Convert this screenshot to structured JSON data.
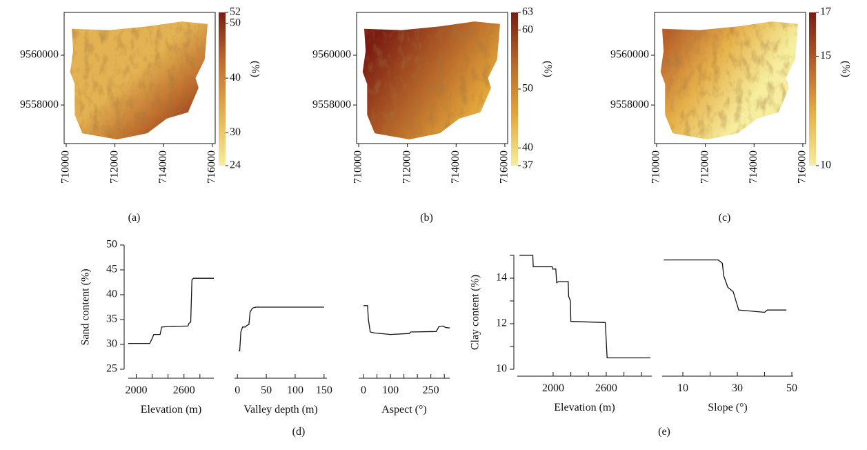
{
  "chart_data": [
    {
      "type": "map",
      "label": "(a)",
      "xlim": [
        709915,
        716115
      ],
      "xticks": [
        710000,
        712000,
        714000,
        716000
      ],
      "ylim": [
        9556450,
        9561720
      ],
      "yticks": [
        9558000,
        9560000
      ],
      "colorbar_lim": [
        24,
        52
      ],
      "colorbar_ticks": [
        24,
        30,
        40,
        50,
        52
      ],
      "colorbar_label": "(%)",
      "colormap": [
        "#f6ee9e",
        "#e3b252",
        "#c0702e",
        "#7a1c12"
      ]
    },
    {
      "type": "map",
      "label": "(b)",
      "xlim": [
        709915,
        716115
      ],
      "xticks": [
        710000,
        712000,
        714000,
        716000
      ],
      "ylim": [
        9556450,
        9561720
      ],
      "yticks": [
        9558000,
        9560000
      ],
      "colorbar_lim": [
        37,
        63
      ],
      "colorbar_ticks": [
        37,
        40,
        50,
        60,
        63
      ],
      "colorbar_label": "(%)",
      "colormap": [
        "#f6ee9e",
        "#e3a63a",
        "#b8682a",
        "#7a1c12"
      ]
    },
    {
      "type": "map",
      "label": "(c)",
      "xlim": [
        709915,
        716115
      ],
      "xticks": [
        710000,
        712000,
        714000,
        716000
      ],
      "ylim": [
        9556450,
        9561720
      ],
      "yticks": [
        9558000,
        9560000
      ],
      "colorbar_lim": [
        10,
        17
      ],
      "colorbar_ticks": [
        10,
        15,
        17
      ],
      "colorbar_label": "(%)",
      "colormap": [
        "#f6ee9e",
        "#e6b04a",
        "#b8602a",
        "#7a1c12"
      ]
    },
    {
      "type": "line",
      "label": "(d)",
      "ylabel": "Sand content (%)",
      "ylim": [
        25,
        50
      ],
      "yticks": [
        25,
        30,
        35,
        40,
        45,
        50
      ],
      "panels": [
        {
          "xlabel": "Elevation (m)",
          "xlim": [
            1900,
            2975
          ],
          "xticks": [
            2000,
            2600
          ],
          "xminorticks": [
            2200,
            2400,
            2800
          ],
          "x": [
            1900,
            2170,
            2200,
            2220,
            2300,
            2320,
            2400,
            2650,
            2660,
            2685,
            2700,
            2720,
            2975
          ],
          "values": [
            30.2,
            30.2,
            31.2,
            32,
            32,
            33.5,
            33.6,
            33.7,
            34.2,
            34.5,
            43,
            43.3,
            43.3
          ]
        },
        {
          "xlabel": "Valley depth (m)",
          "xlim": [
            -5,
            155
          ],
          "xticks": [
            0,
            50,
            100,
            150
          ],
          "xminorticks": [],
          "x": [
            2,
            4,
            6,
            9,
            14,
            16,
            20,
            22,
            26,
            32,
            150
          ],
          "values": [
            28.7,
            28.7,
            32.5,
            33.5,
            33.5,
            33.8,
            34,
            36.5,
            37.3,
            37.5,
            37.5
          ]
        },
        {
          "xlabel": "Aspect (°)",
          "xlim": [
            -18,
            320
          ],
          "xticks": [
            0,
            100,
            250
          ],
          "xminorticks": [
            50,
            150,
            200,
            300
          ],
          "x": [
            0,
            15,
            18,
            25,
            40,
            100,
            170,
            175,
            270,
            280,
            295,
            305,
            320
          ],
          "values": [
            37.8,
            37.8,
            35,
            32.5,
            32.3,
            32,
            32.2,
            32.5,
            32.6,
            33.6,
            33.7,
            33.4,
            33.3
          ]
        }
      ],
      "color": "#111111"
    },
    {
      "type": "line",
      "label": "(e)",
      "ylabel": "Clay content (%)",
      "ylim": [
        10,
        15
      ],
      "yticks": [
        10,
        12,
        14
      ],
      "yminorticks": [
        11,
        13,
        15
      ],
      "panels": [
        {
          "xlabel": "Elevation (m)",
          "xlim": [
            1595,
            3115
          ],
          "xticks": [
            2000,
            2600
          ],
          "xminorticks": [
            2200,
            2400,
            2800,
            3000
          ],
          "x": [
            1620,
            1770,
            1775,
            1990,
            1995,
            2030,
            2040,
            2060,
            2170,
            2175,
            2195,
            2200,
            2590,
            2610,
            3100
          ],
          "values": [
            15,
            15,
            14.5,
            14.5,
            14.4,
            14.4,
            13.8,
            13.85,
            13.85,
            13.2,
            13,
            12.1,
            12.05,
            10.5,
            10.5
          ]
        },
        {
          "xlabel": "Slope (°)",
          "xlim": [
            2.4,
            50.5
          ],
          "xticks": [
            10,
            30,
            50
          ],
          "xminorticks": [
            20,
            40
          ],
          "x": [
            3,
            23,
            24.5,
            25,
            26.5,
            28.5,
            29.5,
            30.5,
            40,
            41,
            48
          ],
          "values": [
            14.8,
            14.8,
            14.65,
            14.1,
            13.6,
            13.4,
            13.0,
            12.6,
            12.5,
            12.6,
            12.6
          ]
        }
      ],
      "color": "#111111"
    }
  ]
}
